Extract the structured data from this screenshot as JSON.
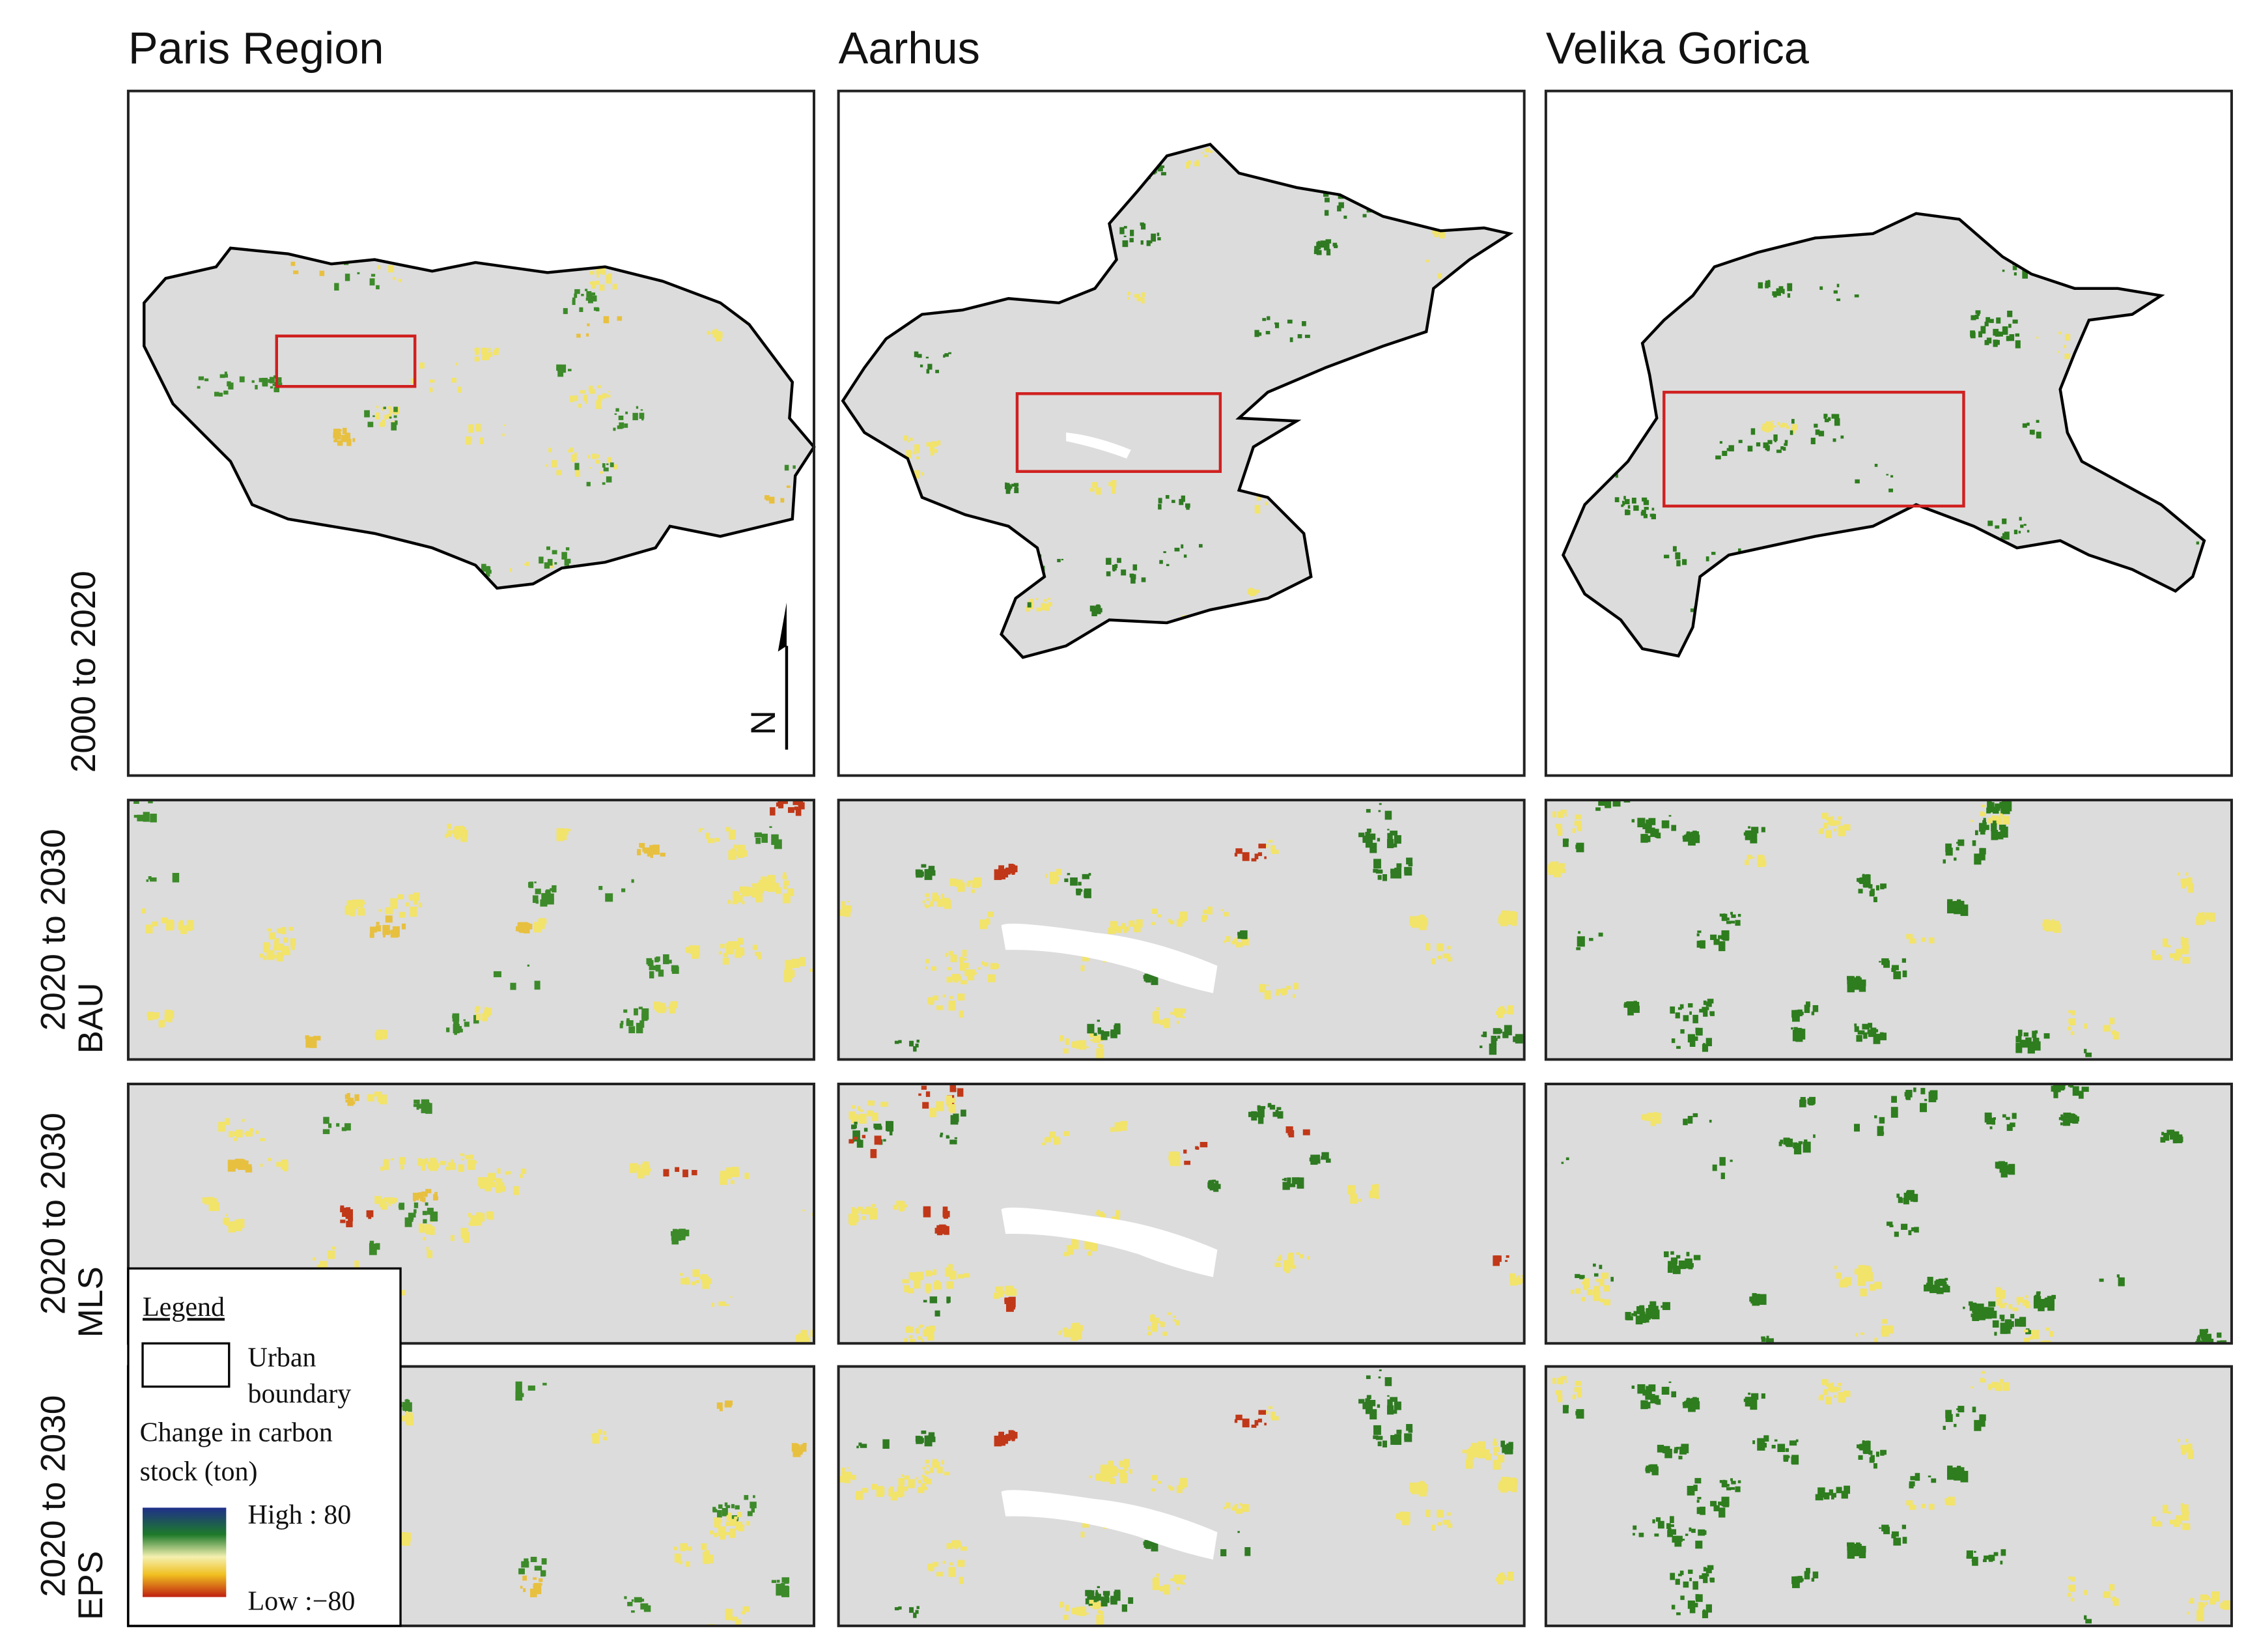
{
  "columns": [
    "Paris Region",
    "Aarhus",
    "Velika Gorica"
  ],
  "rows": [
    {
      "period": "2000 to 2020"
    },
    {
      "period": "2020 to 2030",
      "scenario": "BAU"
    },
    {
      "period": "2020 to 2030",
      "scenario": "MLS"
    },
    {
      "period": "2020 to 2030",
      "scenario": "EPS"
    }
  ],
  "north": "N",
  "legend": {
    "title": "Legend",
    "urban": [
      "Urban",
      "boundary"
    ],
    "change": [
      "Change in carbon",
      "stock (ton)"
    ],
    "high": "High : 80",
    "low": "Low :−80"
  }
}
